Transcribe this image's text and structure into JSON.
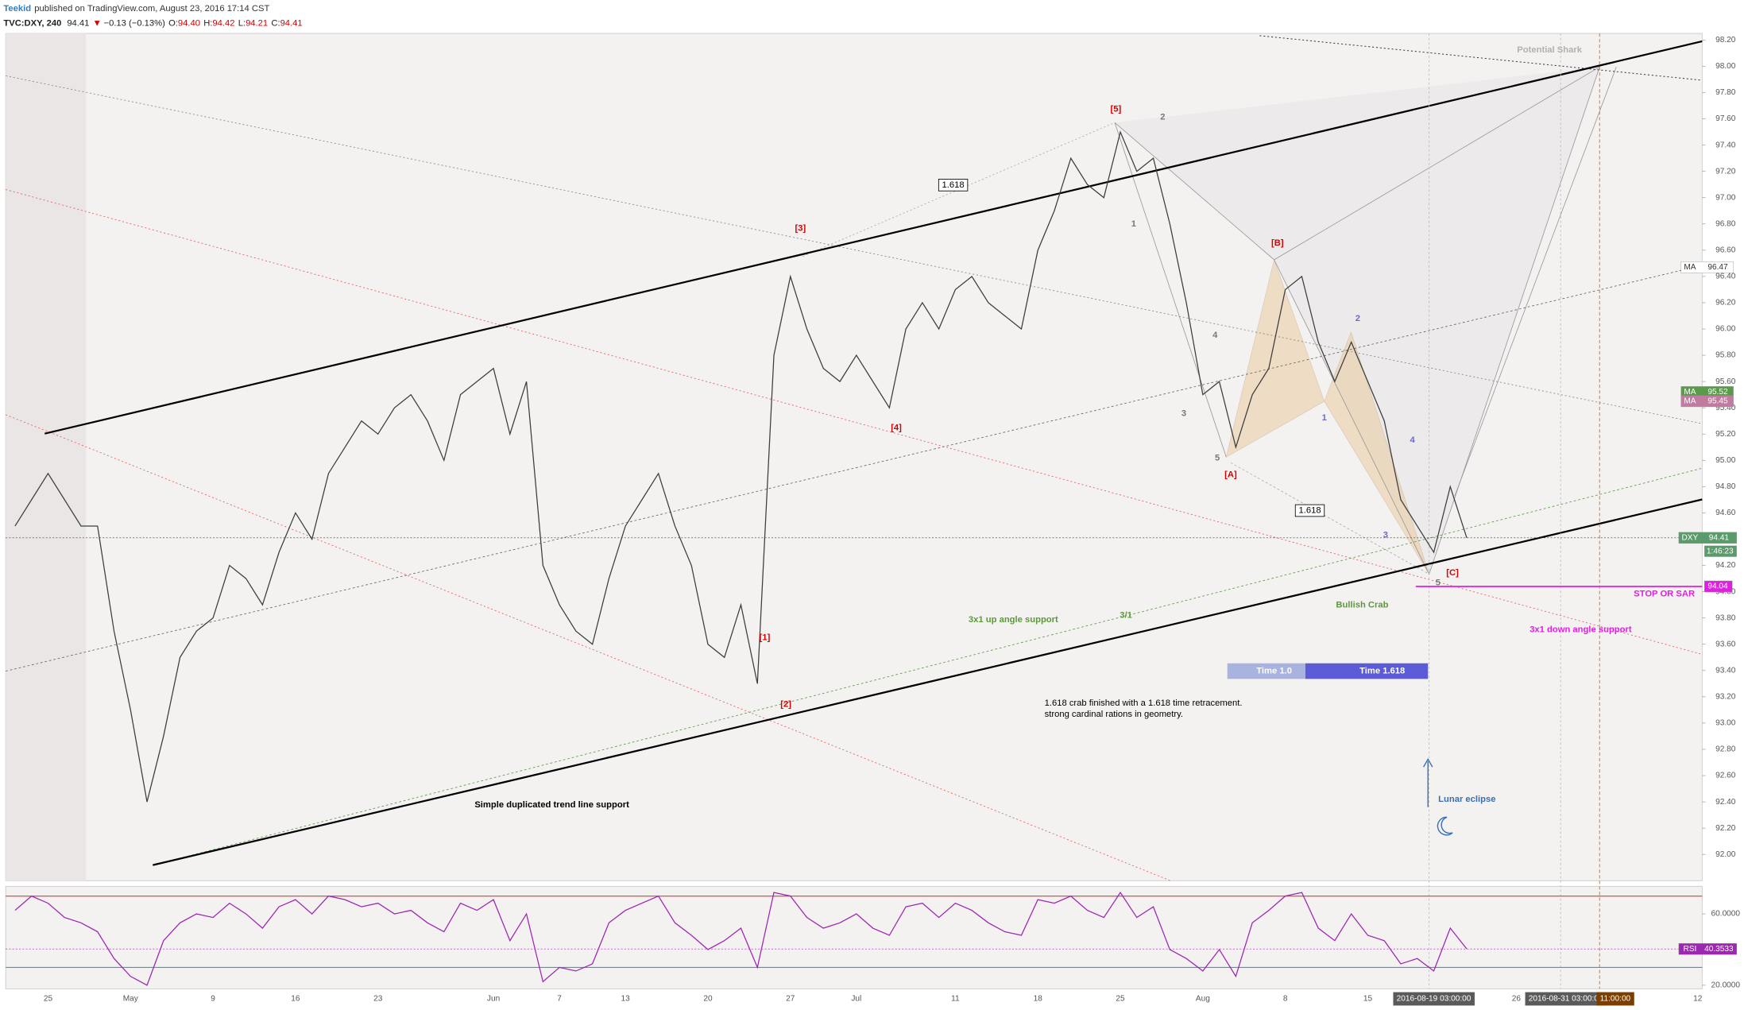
{
  "header": {
    "author": "Teekid",
    "published": "published on TradingView.com, August 23, 2016 17:14 CST",
    "symbol": "TVC:DXY, 240",
    "arrow": "▼",
    "change": "−0.13 (−0.13%)",
    "ohlc": [
      {
        "label": "O:",
        "value": "94.40"
      },
      {
        "label": "H:",
        "value": "94.42"
      },
      {
        "label": "L:",
        "value": "94.21"
      },
      {
        "label": "C:",
        "value": "94.41"
      }
    ]
  },
  "chart_data": [
    {
      "type": "line",
      "categories": [
        null,
        null,
        "25",
        null,
        null,
        null,
        null,
        "May",
        null,
        null,
        null,
        null,
        "9",
        null,
        null,
        null,
        null,
        "16",
        null,
        null,
        null,
        null,
        "23",
        null,
        null,
        null,
        null,
        null,
        null,
        "Jun",
        null,
        null,
        null,
        "7",
        null,
        null,
        null,
        "13",
        null,
        null,
        null,
        null,
        "20",
        null,
        null,
        null,
        null,
        "27",
        null,
        null,
        null,
        "Jul",
        null,
        null,
        null,
        null,
        null,
        "11",
        null,
        null,
        null,
        null,
        "18",
        null,
        null,
        null,
        null,
        "25",
        null,
        null,
        null,
        null,
        "Aug",
        null,
        null,
        null,
        null,
        "8",
        null,
        null,
        null,
        null,
        "15",
        null,
        null,
        null,
        "2016-08-19 03:00:00",
        null,
        null,
        null,
        null,
        "26",
        null,
        null,
        "2016-08-31 03:00:00",
        null,
        null,
        "11:00:00",
        null,
        null,
        null,
        null,
        "12"
      ],
      "series": [
        {
          "name": "DXY",
          "color": "#3d3d3d",
          "values": [
            94.5,
            94.7,
            94.9,
            94.7,
            94.5,
            94.5,
            93.7,
            93.1,
            92.4,
            92.9,
            93.5,
            93.7,
            93.8,
            94.2,
            94.1,
            93.9,
            94.3,
            94.6,
            94.4,
            94.9,
            95.1,
            95.3,
            95.2,
            95.4,
            95.5,
            95.3,
            95.0,
            95.5,
            95.6,
            95.7,
            95.2,
            95.6,
            94.2,
            93.9,
            93.7,
            93.6,
            94.1,
            94.5,
            94.7,
            94.9,
            94.5,
            94.2,
            93.6,
            93.5,
            93.9,
            93.3,
            95.8,
            96.4,
            96.0,
            95.7,
            95.6,
            95.8,
            95.6,
            95.4,
            96.0,
            96.2,
            96.0,
            96.3,
            96.4,
            96.2,
            96.1,
            96.0,
            96.6,
            96.9,
            97.3,
            97.1,
            97.0,
            97.5,
            97.2,
            97.3,
            96.8,
            96.2,
            95.5,
            95.6,
            95.1,
            95.5,
            95.7,
            96.3,
            96.4,
            95.9,
            95.6,
            95.9,
            95.6,
            95.3,
            94.7,
            94.5,
            94.3,
            94.8,
            94.41,
            null,
            null,
            null,
            null,
            null,
            null,
            null,
            null,
            null,
            null,
            null,
            null,
            null,
            null
          ]
        }
      ],
      "ylim": [
        91.8,
        98.25
      ],
      "yticks": [
        {
          "value": 92,
          "label": "92.00"
        },
        {
          "value": 92.2,
          "label": "92.20"
        },
        {
          "value": 92.4,
          "label": "92.40"
        },
        {
          "value": 92.6,
          "label": "92.60"
        },
        {
          "value": 92.8,
          "label": "92.80"
        },
        {
          "value": 93,
          "label": "93.00"
        },
        {
          "value": 93.2,
          "label": "93.20"
        },
        {
          "value": 93.4,
          "label": "93.40"
        },
        {
          "value": 93.6,
          "label": "93.60"
        },
        {
          "value": 93.8,
          "label": "93.80"
        },
        {
          "value": 94,
          "label": "94.00"
        },
        {
          "value": 94.2,
          "label": "94.20"
        },
        {
          "value": 94.4,
          "label": "94.40"
        },
        {
          "value": 94.6,
          "label": "94.60"
        },
        {
          "value": 94.8,
          "label": "94.80"
        },
        {
          "value": 95,
          "label": "95.00"
        },
        {
          "value": 95.2,
          "label": "95.20"
        },
        {
          "value": 95.4,
          "label": "95.40"
        },
        {
          "value": 95.6,
          "label": "95.60"
        },
        {
          "value": 95.8,
          "label": "95.80"
        },
        {
          "value": 96,
          "label": "96.00"
        },
        {
          "value": 96.2,
          "label": "96.20"
        },
        {
          "value": 96.4,
          "label": "96.40"
        },
        {
          "value": 96.6,
          "label": "96.60"
        },
        {
          "value": 96.8,
          "label": "96.80"
        },
        {
          "value": 97,
          "label": "97.00"
        },
        {
          "value": 97.2,
          "label": "97.20"
        },
        {
          "value": 97.4,
          "label": "97.40"
        },
        {
          "value": 97.6,
          "label": "97.60"
        },
        {
          "value": 97.8,
          "label": "97.80"
        },
        {
          "value": 98,
          "label": "98.00"
        },
        {
          "value": 98.2,
          "label": "98.20"
        }
      ],
      "ma_tags": [
        {
          "name": "MA",
          "value": 96.47,
          "color": "#ffffff"
        },
        {
          "name": "MA",
          "value": 95.52,
          "color": "#5a9a4a"
        },
        {
          "name": "MA",
          "value": 95.45,
          "color": "#c27ba0"
        }
      ],
      "hlines": [
        {
          "value": 94.04,
          "color": "#e020e0"
        }
      ],
      "countdown": "1:46:23",
      "annotations": [
        {
          "text": "[5]"
        },
        {
          "text": "2"
        },
        {
          "text": "[3]"
        },
        {
          "text": "1.618"
        },
        {
          "text": "1"
        },
        {
          "text": "[B]"
        },
        {
          "text": "4"
        },
        {
          "text": "2"
        },
        {
          "text": "3"
        },
        {
          "text": "1"
        },
        {
          "text": "[4]"
        },
        {
          "text": "4"
        },
        {
          "text": "5"
        },
        {
          "text": "[A]"
        },
        {
          "text": "1.618"
        },
        {
          "text": "3"
        },
        {
          "text": "[C]"
        },
        {
          "text": "5"
        },
        {
          "text": "[1]"
        },
        {
          "text": "[2]"
        },
        {
          "text": "Potential Shark"
        },
        {
          "text": "3x1 up angle support"
        },
        {
          "text": "3/1"
        },
        {
          "text": "Bullish Crab"
        },
        {
          "text": "STOP OR SAR"
        },
        {
          "text": "3x1 down angle support"
        },
        {
          "text": "Time 1.0"
        },
        {
          "text": "Time 1.618"
        },
        {
          "text": "1.618 crab finished with a 1.618 time retracement."
        },
        {
          "text": "strong cardinal rations in geometry."
        },
        {
          "text": "Simple duplicated trend line support"
        },
        {
          "text": "Lunar eclipse"
        }
      ]
    },
    {
      "type": "line",
      "series": [
        {
          "name": "RSI",
          "color": "#9c27b0",
          "values": [
            62,
            70,
            66,
            58,
            55,
            50,
            35,
            25,
            20,
            45,
            55,
            60,
            58,
            66,
            60,
            52,
            64,
            68,
            60,
            70,
            68,
            64,
            66,
            60,
            62,
            55,
            50,
            66,
            62,
            68,
            45,
            60,
            22,
            30,
            28,
            32,
            55,
            62,
            66,
            70,
            55,
            48,
            40,
            45,
            52,
            30,
            72,
            70,
            58,
            52,
            55,
            60,
            52,
            48,
            64,
            66,
            58,
            66,
            62,
            55,
            50,
            48,
            68,
            66,
            70,
            62,
            58,
            72,
            58,
            64,
            40,
            35,
            28,
            40,
            25,
            55,
            62,
            70,
            72,
            52,
            45,
            60,
            48,
            45,
            32,
            35,
            28,
            52,
            40.3533,
            null,
            null,
            null,
            null,
            null,
            null,
            null,
            null,
            null,
            null,
            null,
            null,
            null,
            null
          ]
        }
      ],
      "ylim": [
        18,
        75.5
      ],
      "yticks": [
        {
          "value": 60,
          "label": "60.0000"
        },
        {
          "value": 20,
          "label": "20.0000"
        }
      ],
      "levels": [
        {
          "value": 70,
          "color": "#e53935"
        },
        {
          "value": 30,
          "color": "#26a3c6"
        }
      ]
    }
  ]
}
